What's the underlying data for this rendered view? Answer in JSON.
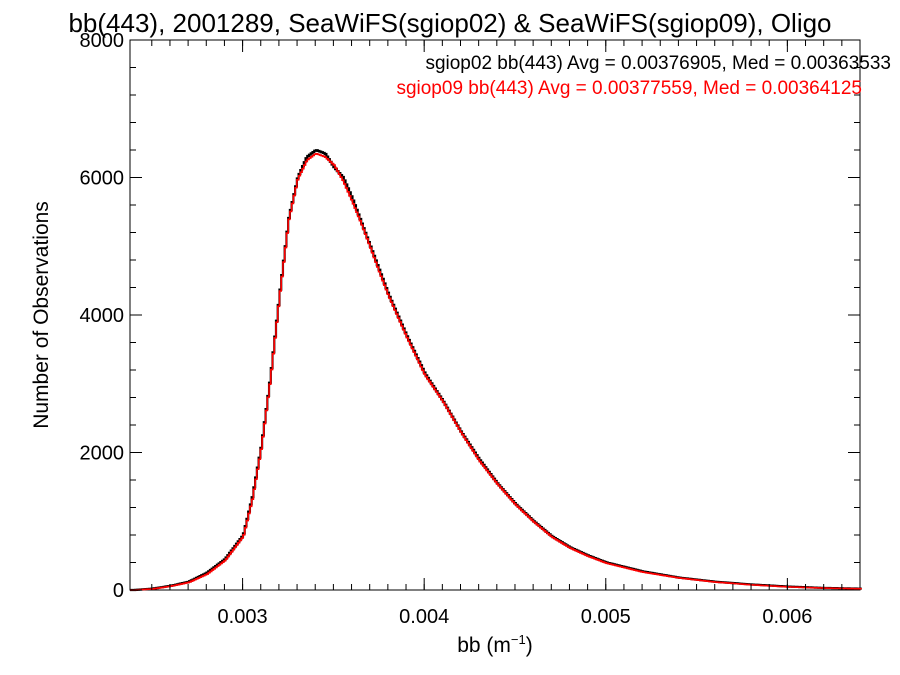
{
  "chart_data": {
    "type": "line",
    "title": "bb(443), 2001289, SeaWiFS(sgiop02) & SeaWiFS(sgiop09), Oligo",
    "xlabel_base": "bb (m",
    "xlabel_sup": "−1",
    "xlabel_close": ")",
    "ylabel": "Number of Observations",
    "xlim": [
      0.00238,
      0.0064
    ],
    "ylim": [
      0,
      8000
    ],
    "x_ticks": [
      {
        "value": 0.003,
        "label": "0.003"
      },
      {
        "value": 0.004,
        "label": "0.004"
      },
      {
        "value": 0.005,
        "label": "0.005"
      },
      {
        "value": 0.006,
        "label": "0.006"
      }
    ],
    "y_ticks": [
      {
        "value": 0,
        "label": "0"
      },
      {
        "value": 2000,
        "label": "2000"
      },
      {
        "value": 4000,
        "label": "4000"
      },
      {
        "value": 6000,
        "label": "6000"
      },
      {
        "value": 8000,
        "label": "8000"
      }
    ],
    "x": [
      0.0024,
      0.0025,
      0.0026,
      0.0027,
      0.0028,
      0.0029,
      0.003,
      0.00305,
      0.0031,
      0.00315,
      0.0032,
      0.00325,
      0.0033,
      0.00335,
      0.0034,
      0.00345,
      0.0035,
      0.00355,
      0.0036,
      0.00365,
      0.0037,
      0.00375,
      0.0038,
      0.0039,
      0.004,
      0.0041,
      0.0042,
      0.0043,
      0.0044,
      0.0045,
      0.0046,
      0.0047,
      0.0048,
      0.0049,
      0.005,
      0.0052,
      0.0054,
      0.0056,
      0.0058,
      0.006,
      0.0062,
      0.0064
    ],
    "series": [
      {
        "name": "sgiop02 bb(443) Avg = 0.00376905, Med = 0.00363533",
        "color": "#000000",
        "values": [
          0,
          20,
          60,
          120,
          250,
          450,
          800,
          1350,
          2100,
          3100,
          4300,
          5400,
          6000,
          6300,
          6400,
          6350,
          6150,
          6000,
          5700,
          5350,
          5000,
          4650,
          4300,
          3700,
          3150,
          2750,
          2300,
          1900,
          1550,
          1250,
          1000,
          780,
          620,
          500,
          400,
          270,
          180,
          120,
          80,
          50,
          30,
          20
        ]
      },
      {
        "name": "sgiop09 bb(443) Avg = 0.00377559, Med = 0.00364125",
        "color": "#ff0000",
        "values": [
          0,
          15,
          55,
          110,
          230,
          430,
          780,
          1320,
          2080,
          3080,
          4280,
          5380,
          5980,
          6250,
          6350,
          6300,
          6180,
          5950,
          5650,
          5330,
          4980,
          4620,
          4280,
          3680,
          3130,
          2740,
          2290,
          1880,
          1540,
          1240,
          990,
          770,
          610,
          490,
          390,
          260,
          175,
          115,
          75,
          45,
          28,
          18
        ]
      }
    ]
  }
}
